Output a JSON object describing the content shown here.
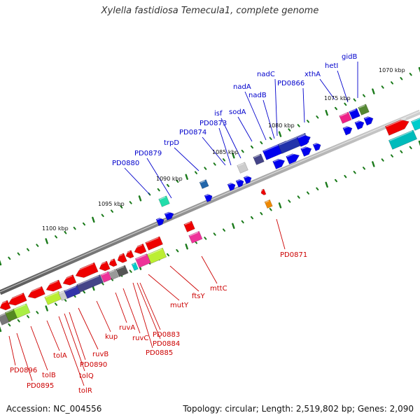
{
  "title": "Xylella fastidiosa Temecula1, complete genome",
  "footer": {
    "accession": "Accession: NC_004556",
    "summary": "Topology: circular; Length: 2,519,802 bp; Genes: 2,090"
  },
  "colors": {
    "forward_label": "#0000cc",
    "reverse_label": "#cc0000",
    "backbone": "#888888",
    "tick": "#1a7a1a",
    "forward_gene": "#0000ee",
    "reverse_gene": "#ee0000"
  },
  "ruler": [
    {
      "label": "1070 kbp"
    },
    {
      "label": "1075 kbp"
    },
    {
      "label": "1080 kbp"
    },
    {
      "label": "1085 kbp"
    },
    {
      "label": "1090 kbp"
    },
    {
      "label": "1095 kbp"
    },
    {
      "label": "1100 kbp"
    }
  ],
  "forward_labels": [
    {
      "name": "gidB"
    },
    {
      "name": "hetI"
    },
    {
      "name": "xthA"
    },
    {
      "name": "PD0866"
    },
    {
      "name": "nadC"
    },
    {
      "name": "nadB"
    },
    {
      "name": "nadA"
    },
    {
      "name": "sodA"
    },
    {
      "name": "isf"
    },
    {
      "name": "PD0873"
    },
    {
      "name": "PD0874"
    },
    {
      "name": "trpD"
    },
    {
      "name": "PD0879"
    },
    {
      "name": "PD0880"
    }
  ],
  "reverse_labels": [
    {
      "name": "PD0871"
    },
    {
      "name": "mttC"
    },
    {
      "name": "ftsY"
    },
    {
      "name": "mutY"
    },
    {
      "name": "PD0883"
    },
    {
      "name": "PD0884"
    },
    {
      "name": "PD0885"
    },
    {
      "name": "ruvC"
    },
    {
      "name": "ruvA"
    },
    {
      "name": "kup"
    },
    {
      "name": "ruvB"
    },
    {
      "name": "PD0890"
    },
    {
      "name": "tolQ"
    },
    {
      "name": "tolR"
    },
    {
      "name": "tolA"
    },
    {
      "name": "tolB"
    },
    {
      "name": "PD0895"
    },
    {
      "name": "PD0896"
    }
  ]
}
